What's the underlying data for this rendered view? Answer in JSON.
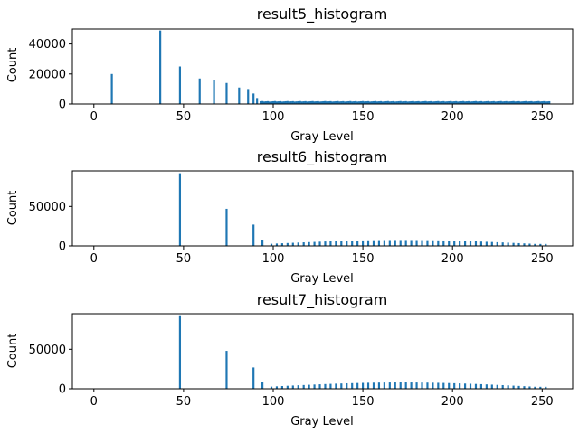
{
  "chart_data": [
    {
      "type": "bar",
      "title": "result5_histogram",
      "xlabel": "Gray Level",
      "ylabel": "Count",
      "xlim": [
        -12,
        267
      ],
      "ylim": [
        0,
        50000
      ],
      "xticks": [
        0,
        50,
        100,
        150,
        200,
        250
      ],
      "yticks": [
        0,
        20000,
        40000
      ],
      "tick_labels_x": [
        "0",
        "50",
        "100",
        "150",
        "200",
        "250"
      ],
      "tick_labels_y": [
        "0",
        "20000",
        "40000"
      ],
      "x": [
        10,
        37,
        48,
        59,
        67,
        74,
        81,
        86,
        89,
        91
      ],
      "values": [
        20000,
        49000,
        25000,
        17000,
        16000,
        14000,
        11000,
        10000,
        7000,
        4000
      ],
      "tail": {
        "start": 93,
        "end": 254,
        "step": 1,
        "base": 1600,
        "amplitude": 400,
        "sparse_every": 1
      },
      "bar_width": 1.1
    },
    {
      "type": "bar",
      "title": "result6_histogram",
      "xlabel": "Gray Level",
      "ylabel": "Count",
      "xlim": [
        -12,
        267
      ],
      "ylim": [
        0,
        95000
      ],
      "xticks": [
        0,
        50,
        100,
        150,
        200,
        250
      ],
      "yticks": [
        0,
        50000
      ],
      "tick_labels_x": [
        "0",
        "50",
        "100",
        "150",
        "200",
        "250"
      ],
      "tick_labels_y": [
        "0",
        "50000"
      ],
      "x": [
        48,
        74,
        89,
        94
      ],
      "values": [
        92000,
        47000,
        27000,
        8000
      ],
      "tail": {
        "start": 97,
        "end": 254,
        "step": 1,
        "base": 2500,
        "amplitude": 5000,
        "sparse_every": 3
      },
      "bar_width": 1.1
    },
    {
      "type": "bar",
      "title": "result7_histogram",
      "xlabel": "Gray Level",
      "ylabel": "Count",
      "xlim": [
        -12,
        267
      ],
      "ylim": [
        0,
        95000
      ],
      "xticks": [
        0,
        50,
        100,
        150,
        200,
        250
      ],
      "yticks": [
        0,
        50000
      ],
      "tick_labels_x": [
        "0",
        "50",
        "100",
        "150",
        "200",
        "250"
      ],
      "tick_labels_y": [
        "0",
        "50000"
      ],
      "x": [
        48,
        74,
        89,
        94
      ],
      "values": [
        93000,
        48000,
        27000,
        9000
      ],
      "tail": {
        "start": 97,
        "end": 254,
        "step": 1,
        "base": 2500,
        "amplitude": 5500,
        "sparse_every": 3
      },
      "bar_width": 1.1
    }
  ]
}
